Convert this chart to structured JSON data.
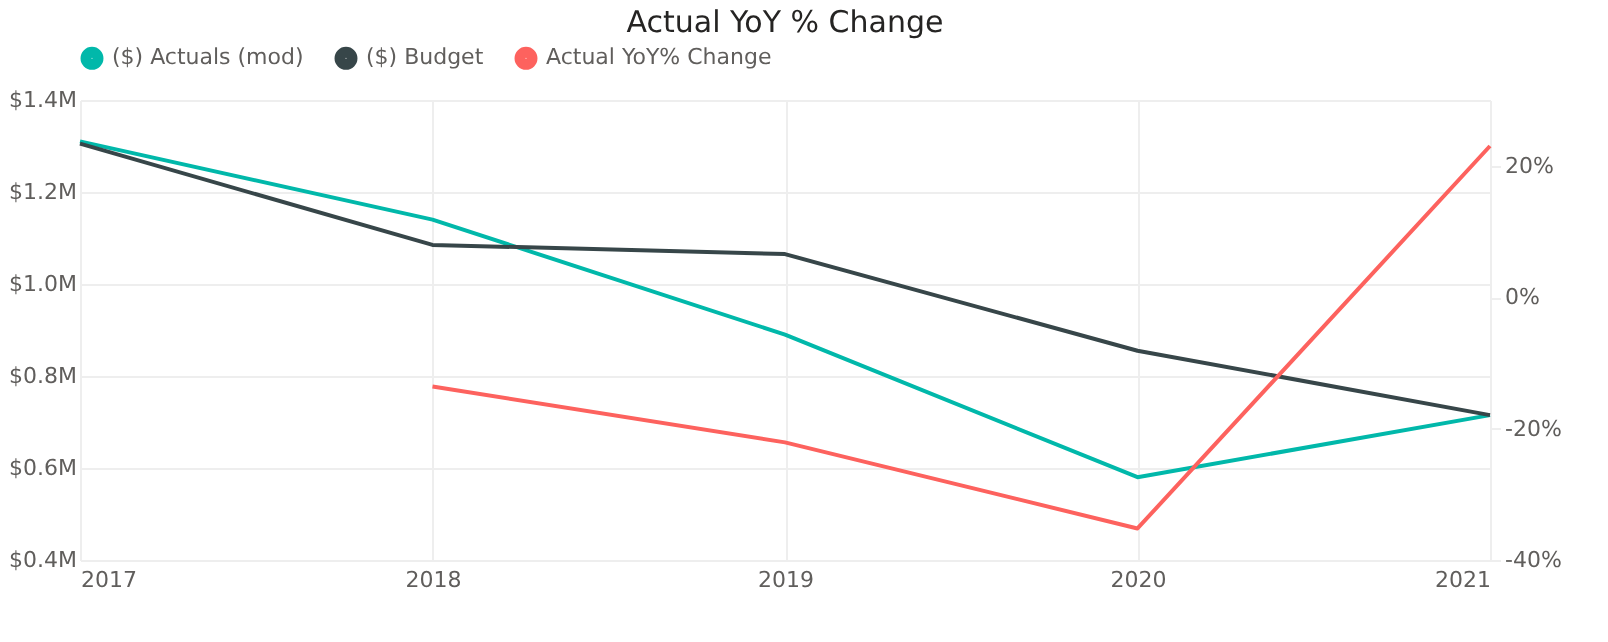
{
  "chart_data": {
    "type": "line",
    "title": "Actual YoY % Change",
    "categories": [
      "2017",
      "2018",
      "2019",
      "2020",
      "2021"
    ],
    "series": [
      {
        "name": "($) Actuals (mod)",
        "color": "#01b8aa",
        "values": [
          1.31,
          1.14,
          0.89,
          0.58,
          0.715
        ]
      },
      {
        "name": "($) Budget",
        "color": "#374649",
        "values": [
          1.305,
          1.085,
          1.065,
          0.855,
          0.715
        ]
      },
      {
        "name": "Actual YoY% Change",
        "color": "#fd625e",
        "axis": "y2",
        "values": [
          null,
          -13.6,
          -22.1,
          -35.2,
          23
        ]
      }
    ],
    "ylim": [
      0.4,
      1.4
    ],
    "yticks": [
      {
        "value": 0.4,
        "label": "$0.4M"
      },
      {
        "value": 0.6,
        "label": "$0.6M"
      },
      {
        "value": 0.8,
        "label": "$0.8M"
      },
      {
        "value": 1.0,
        "label": "$1.0M"
      },
      {
        "value": 1.2,
        "label": "$1.2M"
      },
      {
        "value": 1.4,
        "label": "$1.4M"
      }
    ],
    "y2lim": [
      -40,
      30
    ],
    "y2ticks": [
      {
        "value": -40,
        "label": "-40%"
      },
      {
        "value": -20,
        "label": "-20%"
      },
      {
        "value": 0,
        "label": "0%"
      },
      {
        "value": 20,
        "label": "20%"
      }
    ],
    "grid": true,
    "legend": "top left",
    "marker": "none",
    "line_style": "solid"
  }
}
